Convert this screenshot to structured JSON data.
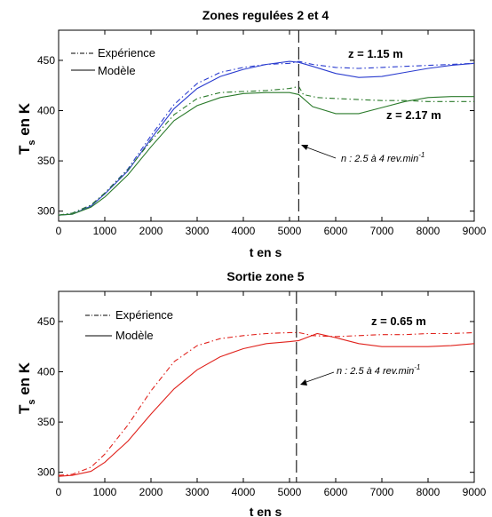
{
  "chart_data": [
    {
      "type": "line",
      "title": "Zones regulées 2 et 4",
      "xlabel": "t en s",
      "ylabel": "T",
      "ylabel_sub": "s",
      "ylabel_rest": " en K",
      "xlim": [
        0,
        9000
      ],
      "ylim": [
        290,
        480
      ],
      "xticks": [
        0,
        1000,
        2000,
        3000,
        4000,
        5000,
        6000,
        7000,
        8000,
        9000
      ],
      "yticks": [
        300,
        350,
        400,
        450
      ],
      "grid": false,
      "legend": {
        "placement": "top-left",
        "entries": [
          {
            "label": "Expérience",
            "style": "dashdot"
          },
          {
            "label": "Modèle",
            "style": "solid"
          }
        ]
      },
      "vline": {
        "x": 5200
      },
      "annotation": {
        "text": "n : 2.5 à 4 rev.min",
        "sup": "-1",
        "x": 5200,
        "y": 365
      },
      "series": [
        {
          "group": "z = 1.15 m",
          "kind": "Expérience",
          "color": "#2a3ccf",
          "style": "dashdot",
          "x": [
            0,
            300,
            700,
            1000,
            1500,
            2000,
            2500,
            3000,
            3500,
            4000,
            4500,
            5000,
            5200,
            5500,
            6000,
            6500,
            7000,
            7500,
            8000,
            8500,
            9000
          ],
          "y": [
            296,
            298,
            306,
            318,
            342,
            375,
            406,
            427,
            438,
            443,
            446,
            447,
            449,
            446,
            443,
            442,
            443,
            444,
            445,
            446,
            447
          ]
        },
        {
          "group": "z = 1.15 m",
          "kind": "Modèle",
          "color": "#2a3ccf",
          "style": "solid",
          "x": [
            0,
            300,
            700,
            1000,
            1500,
            2000,
            2500,
            3000,
            3500,
            4000,
            4500,
            5000,
            5200,
            5500,
            6000,
            6500,
            7000,
            7500,
            8000,
            8500,
            9000
          ],
          "y": [
            296,
            297,
            305,
            317,
            340,
            372,
            402,
            422,
            434,
            441,
            446,
            449,
            448,
            444,
            437,
            433,
            434,
            438,
            442,
            445,
            447
          ]
        },
        {
          "group": "z = 2.17 m",
          "kind": "Expérience",
          "color": "#2a7a2a",
          "style": "dashdot",
          "x": [
            0,
            300,
            700,
            1000,
            1500,
            2000,
            2500,
            3000,
            3500,
            4000,
            4500,
            5000,
            5200,
            5300,
            5600,
            6000,
            6500,
            7000,
            7500,
            8000,
            8500,
            9000
          ],
          "y": [
            296,
            298,
            306,
            318,
            341,
            370,
            396,
            412,
            418,
            419,
            420,
            422,
            424,
            416,
            413,
            412,
            411,
            410,
            410,
            409,
            409,
            409
          ]
        },
        {
          "group": "z = 2.17 m",
          "kind": "Modèle",
          "color": "#2a7a2a",
          "style": "solid",
          "x": [
            0,
            300,
            700,
            1000,
            1500,
            2000,
            2500,
            3000,
            3500,
            4000,
            4500,
            5000,
            5200,
            5500,
            6000,
            6500,
            7000,
            7500,
            8000,
            8500,
            9000
          ],
          "y": [
            296,
            297,
            304,
            314,
            336,
            364,
            390,
            405,
            413,
            417,
            418,
            418,
            416,
            404,
            397,
            397,
            403,
            409,
            413,
            414,
            414
          ]
        }
      ],
      "labels": [
        {
          "text": "z = 1.15 m",
          "color": "#000000"
        },
        {
          "text": "z = 2.17 m",
          "color": "#000000"
        }
      ]
    },
    {
      "type": "line",
      "title": "Sortie zone 5",
      "xlabel": "t en s",
      "ylabel": "T",
      "ylabel_sub": "s",
      "ylabel_rest": " en K",
      "xlim": [
        0,
        9000
      ],
      "ylim": [
        290,
        480
      ],
      "xticks": [
        0,
        1000,
        2000,
        3000,
        4000,
        5000,
        6000,
        7000,
        8000,
        9000
      ],
      "yticks": [
        300,
        350,
        400,
        450
      ],
      "grid": false,
      "legend": {
        "placement": "top-left",
        "entries": [
          {
            "label": "Expérience",
            "style": "dashdot"
          },
          {
            "label": "Modèle",
            "style": "solid"
          }
        ]
      },
      "vline": {
        "x": 5150
      },
      "annotation": {
        "text": "n : 2.5 à 4 rev.min",
        "sup": "-1",
        "x": 5150,
        "y": 402
      },
      "series": [
        {
          "group": "z = 0.65 m",
          "kind": "Expérience",
          "color": "#e0221c",
          "style": "dashdot",
          "x": [
            0,
            300,
            700,
            1000,
            1500,
            2000,
            2500,
            3000,
            3500,
            4000,
            4500,
            5000,
            5200,
            5500,
            6000,
            6500,
            7000,
            7500,
            8000,
            8500,
            9000
          ],
          "y": [
            297,
            298,
            305,
            318,
            347,
            381,
            410,
            426,
            433,
            436,
            438,
            439,
            439,
            436,
            435,
            436,
            437,
            437,
            438,
            438,
            439
          ]
        },
        {
          "group": "z = 0.65 m",
          "kind": "Modèle",
          "color": "#e0221c",
          "style": "solid",
          "x": [
            0,
            300,
            700,
            1000,
            1500,
            2000,
            2500,
            3000,
            3500,
            4000,
            4500,
            5000,
            5200,
            5600,
            6000,
            6500,
            7000,
            7500,
            8000,
            8500,
            9000
          ],
          "y": [
            296,
            297,
            301,
            310,
            331,
            358,
            383,
            402,
            415,
            423,
            428,
            430,
            431,
            438,
            434,
            428,
            425,
            425,
            425,
            426,
            428
          ]
        }
      ],
      "labels": [
        {
          "text": "z = 0.65 m",
          "color": "#000000"
        }
      ]
    }
  ]
}
